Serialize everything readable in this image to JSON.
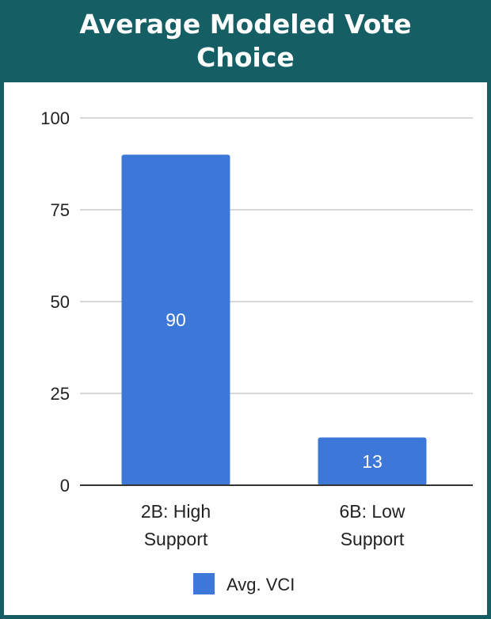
{
  "chart_data": {
    "type": "bar",
    "title": "Average Modeled Vote Choice",
    "categories": [
      "2B: High Support",
      "6B: Low Support"
    ],
    "category_lines": [
      [
        "2B: High",
        "Support"
      ],
      [
        "6B: Low",
        "Support"
      ]
    ],
    "series": [
      {
        "name": "Avg. VCI",
        "values": [
          90,
          13
        ],
        "color": "#3d78d8"
      }
    ],
    "ylim": [
      0,
      100
    ],
    "yticks": [
      0,
      25,
      50,
      75,
      100
    ],
    "grid": true,
    "legend": "bottom",
    "data_labels": true
  },
  "colors": {
    "header": "#155e64",
    "bar": "#3d78d8",
    "grid": "#cccccc",
    "axis": "#333333"
  }
}
